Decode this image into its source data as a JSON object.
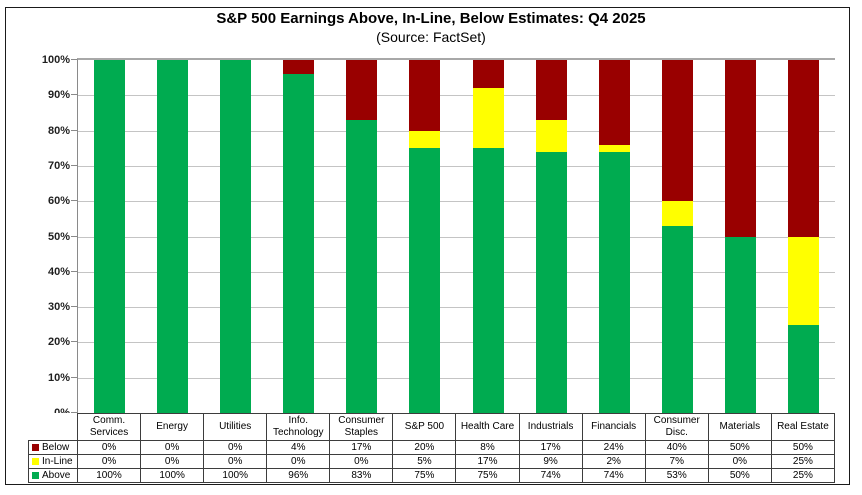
{
  "chart_data": {
    "type": "bar",
    "stacked": true,
    "title": "S&P 500 Earnings Above, In-Line, Below Estimates: Q4 2025",
    "subtitle": "(Source: FactSet)",
    "categories": [
      "Comm. Services",
      "Energy",
      "Utilities",
      "Info. Technology",
      "Consumer Staples",
      "S&P 500",
      "Health Care",
      "Industrials",
      "Financials",
      "Consumer Disc.",
      "Materials",
      "Real Estate"
    ],
    "series": [
      {
        "name": "Below",
        "color": "#990000",
        "values": [
          0,
          0,
          0,
          4,
          17,
          20,
          8,
          17,
          24,
          40,
          50,
          50
        ]
      },
      {
        "name": "In-Line",
        "color": "#FFFF00",
        "values": [
          0,
          0,
          0,
          0,
          0,
          5,
          17,
          9,
          2,
          7,
          0,
          25
        ]
      },
      {
        "name": "Above",
        "color": "#00AB50",
        "values": [
          100,
          100,
          100,
          96,
          83,
          75,
          75,
          74,
          74,
          53,
          50,
          25
        ]
      }
    ],
    "xlabel": "",
    "ylabel": "",
    "ylim": [
      0,
      100
    ],
    "y_tick_step": 10,
    "value_suffix": "%",
    "grid": true,
    "legend_position": "table-left-column",
    "data_table_below_axis": true
  },
  "colors": {
    "below": "#990000",
    "inline": "#FFFF00",
    "above": "#00AB50",
    "gridline": "#C4C4C4",
    "axis": "#8A8A8A",
    "table_border": "#3D3D3D",
    "background": "#FFFFFF"
  }
}
